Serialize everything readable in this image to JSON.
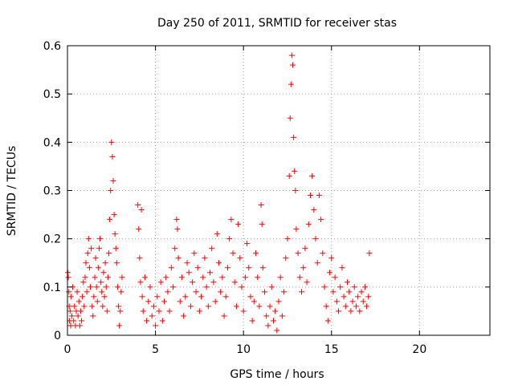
{
  "chart_data": {
    "type": "scatter",
    "title": "Day 250 of 2011, SRMTID for receiver stas",
    "xlabel": "GPS time / hours",
    "ylabel": "SRMTID / TECUs",
    "xlim": [
      0,
      24
    ],
    "ylim": [
      0,
      0.6
    ],
    "x_ticks": [
      "0",
      "5",
      "10",
      "15",
      "20"
    ],
    "y_ticks": [
      "0",
      "0.1",
      "0.2",
      "0.3",
      "0.4",
      "0.5",
      "0.6"
    ],
    "grid": true,
    "marker": "+",
    "color": "#ff0000",
    "series": [
      {
        "name": "SRMTID",
        "points": [
          [
            0.02,
            0.13
          ],
          [
            0.05,
            0.12
          ],
          [
            0.08,
            0.09
          ],
          [
            0.1,
            0.06
          ],
          [
            0.12,
            0.03
          ],
          [
            0.15,
            0.05
          ],
          [
            0.18,
            0.02
          ],
          [
            0.2,
            0.08
          ],
          [
            0.25,
            0.04
          ],
          [
            0.3,
            0.1
          ],
          [
            0.35,
            0.03
          ],
          [
            0.4,
            0.06
          ],
          [
            0.45,
            0.02
          ],
          [
            0.5,
            0.05
          ],
          [
            0.55,
            0.09
          ],
          [
            0.6,
            0.04
          ],
          [
            0.65,
            0.07
          ],
          [
            0.7,
            0.02
          ],
          [
            0.75,
            0.05
          ],
          [
            0.8,
            0.03
          ],
          [
            0.85,
            0.08
          ],
          [
            0.9,
            0.11
          ],
          [
            0.95,
            0.06
          ],
          [
            1.0,
            0.12
          ],
          [
            1.05,
            0.15
          ],
          [
            1.1,
            0.09
          ],
          [
            1.15,
            0.17
          ],
          [
            1.2,
            0.2
          ],
          [
            1.25,
            0.14
          ],
          [
            1.3,
            0.1
          ],
          [
            1.35,
            0.18
          ],
          [
            1.4,
            0.06
          ],
          [
            1.45,
            0.04
          ],
          [
            1.5,
            0.08
          ],
          [
            1.55,
            0.12
          ],
          [
            1.6,
            0.16
          ],
          [
            1.65,
            0.1
          ],
          [
            1.7,
            0.07
          ],
          [
            1.75,
            0.14
          ],
          [
            1.8,
            0.18
          ],
          [
            1.85,
            0.2
          ],
          [
            1.9,
            0.11
          ],
          [
            1.95,
            0.09
          ],
          [
            2.0,
            0.06
          ],
          [
            2.05,
            0.13
          ],
          [
            2.1,
            0.08
          ],
          [
            2.15,
            0.15
          ],
          [
            2.2,
            0.1
          ],
          [
            2.25,
            0.05
          ],
          [
            2.3,
            0.12
          ],
          [
            2.35,
            0.17
          ],
          [
            2.4,
            0.24
          ],
          [
            2.45,
            0.3
          ],
          [
            2.5,
            0.4
          ],
          [
            2.55,
            0.37
          ],
          [
            2.6,
            0.32
          ],
          [
            2.65,
            0.25
          ],
          [
            2.7,
            0.21
          ],
          [
            2.75,
            0.18
          ],
          [
            2.8,
            0.15
          ],
          [
            2.85,
            0.1
          ],
          [
            2.9,
            0.06
          ],
          [
            2.95,
            0.02
          ],
          [
            3.0,
            0.05
          ],
          [
            3.05,
            0.09
          ],
          [
            3.1,
            0.12
          ],
          [
            4.0,
            0.27
          ],
          [
            4.05,
            0.22
          ],
          [
            4.1,
            0.16
          ],
          [
            4.15,
            0.11
          ],
          [
            4.2,
            0.26
          ],
          [
            4.25,
            0.08
          ],
          [
            4.3,
            0.05
          ],
          [
            4.4,
            0.12
          ],
          [
            4.5,
            0.03
          ],
          [
            4.6,
            0.07
          ],
          [
            4.7,
            0.1
          ],
          [
            4.8,
            0.04
          ],
          [
            4.9,
            0.06
          ],
          [
            5.0,
            0.02
          ],
          [
            5.1,
            0.08
          ],
          [
            5.2,
            0.05
          ],
          [
            5.3,
            0.11
          ],
          [
            5.4,
            0.03
          ],
          [
            5.5,
            0.07
          ],
          [
            5.6,
            0.12
          ],
          [
            5.7,
            0.09
          ],
          [
            5.8,
            0.05
          ],
          [
            5.9,
            0.14
          ],
          [
            6.0,
            0.1
          ],
          [
            6.1,
            0.18
          ],
          [
            6.2,
            0.24
          ],
          [
            6.25,
            0.22
          ],
          [
            6.3,
            0.16
          ],
          [
            6.4,
            0.07
          ],
          [
            6.5,
            0.12
          ],
          [
            6.6,
            0.04
          ],
          [
            6.7,
            0.08
          ],
          [
            6.8,
            0.15
          ],
          [
            6.9,
            0.13
          ],
          [
            7.0,
            0.06
          ],
          [
            7.1,
            0.11
          ],
          [
            7.2,
            0.17
          ],
          [
            7.3,
            0.09
          ],
          [
            7.4,
            0.14
          ],
          [
            7.5,
            0.05
          ],
          [
            7.6,
            0.08
          ],
          [
            7.7,
            0.12
          ],
          [
            7.8,
            0.16
          ],
          [
            7.9,
            0.1
          ],
          [
            8.0,
            0.06
          ],
          [
            8.1,
            0.13
          ],
          [
            8.2,
            0.18
          ],
          [
            8.3,
            0.11
          ],
          [
            8.4,
            0.07
          ],
          [
            8.5,
            0.21
          ],
          [
            8.6,
            0.15
          ],
          [
            8.7,
            0.09
          ],
          [
            8.8,
            0.12
          ],
          [
            8.9,
            0.04
          ],
          [
            9.0,
            0.08
          ],
          [
            9.1,
            0.14
          ],
          [
            9.2,
            0.2
          ],
          [
            9.3,
            0.24
          ],
          [
            9.4,
            0.17
          ],
          [
            9.5,
            0.11
          ],
          [
            9.6,
            0.06
          ],
          [
            9.7,
            0.23
          ],
          [
            9.8,
            0.16
          ],
          [
            9.9,
            0.1
          ],
          [
            10.0,
            0.05
          ],
          [
            10.1,
            0.12
          ],
          [
            10.2,
            0.19
          ],
          [
            10.3,
            0.14
          ],
          [
            10.4,
            0.08
          ],
          [
            10.5,
            0.03
          ],
          [
            10.6,
            0.07
          ],
          [
            10.7,
            0.17
          ],
          [
            10.8,
            0.12
          ],
          [
            10.9,
            0.06
          ],
          [
            11.0,
            0.27
          ],
          [
            11.05,
            0.23
          ],
          [
            11.1,
            0.14
          ],
          [
            11.2,
            0.09
          ],
          [
            11.3,
            0.04
          ],
          [
            11.4,
            0.02
          ],
          [
            11.5,
            0.06
          ],
          [
            11.6,
            0.1
          ],
          [
            11.7,
            0.03
          ],
          [
            11.8,
            0.05
          ],
          [
            11.9,
            0.01
          ],
          [
            12.0,
            0.07
          ],
          [
            12.1,
            0.12
          ],
          [
            12.2,
            0.04
          ],
          [
            12.3,
            0.09
          ],
          [
            12.4,
            0.16
          ],
          [
            12.5,
            0.2
          ],
          [
            12.6,
            0.33
          ],
          [
            12.65,
            0.45
          ],
          [
            12.7,
            0.52
          ],
          [
            12.75,
            0.58
          ],
          [
            12.8,
            0.56
          ],
          [
            12.85,
            0.41
          ],
          [
            12.9,
            0.34
          ],
          [
            12.95,
            0.3
          ],
          [
            13.0,
            0.22
          ],
          [
            13.1,
            0.17
          ],
          [
            13.2,
            0.12
          ],
          [
            13.3,
            0.09
          ],
          [
            13.4,
            0.14
          ],
          [
            13.5,
            0.18
          ],
          [
            13.6,
            0.11
          ],
          [
            13.7,
            0.23
          ],
          [
            13.8,
            0.29
          ],
          [
            13.9,
            0.33
          ],
          [
            14.0,
            0.26
          ],
          [
            14.1,
            0.2
          ],
          [
            14.2,
            0.15
          ],
          [
            14.3,
            0.29
          ],
          [
            14.4,
            0.24
          ],
          [
            14.5,
            0.17
          ],
          [
            14.6,
            0.1
          ],
          [
            14.7,
            0.06
          ],
          [
            14.8,
            0.03
          ],
          [
            14.9,
            0.13
          ],
          [
            15.0,
            0.16
          ],
          [
            15.1,
            0.09
          ],
          [
            15.2,
            0.12
          ],
          [
            15.3,
            0.07
          ],
          [
            15.4,
            0.05
          ],
          [
            15.5,
            0.1
          ],
          [
            15.6,
            0.14
          ],
          [
            15.7,
            0.08
          ],
          [
            15.8,
            0.06
          ],
          [
            15.9,
            0.11
          ],
          [
            16.0,
            0.09
          ],
          [
            16.1,
            0.05
          ],
          [
            16.2,
            0.07
          ],
          [
            16.3,
            0.1
          ],
          [
            16.4,
            0.06
          ],
          [
            16.5,
            0.08
          ],
          [
            16.6,
            0.05
          ],
          [
            16.7,
            0.09
          ],
          [
            16.8,
            0.07
          ],
          [
            16.9,
            0.1
          ],
          [
            17.0,
            0.06
          ],
          [
            17.1,
            0.08
          ],
          [
            17.15,
            0.17
          ]
        ]
      }
    ]
  }
}
